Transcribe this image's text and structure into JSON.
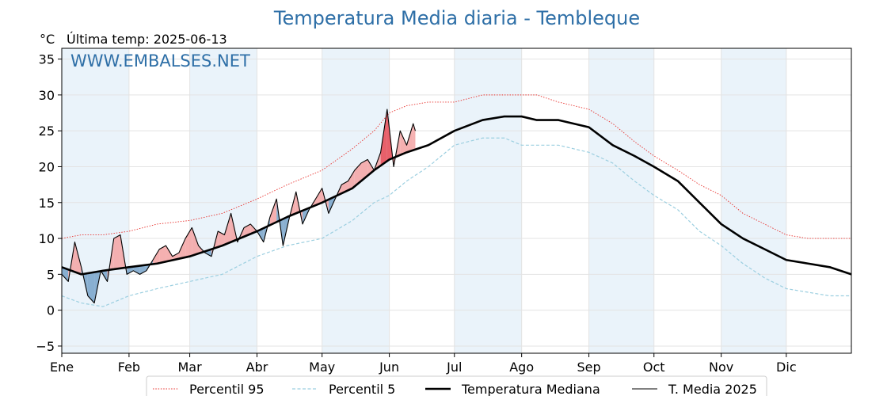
{
  "chart_data": {
    "type": "line",
    "title": "Temperatura Media diaria - Tembleque",
    "unit_label": "°C",
    "last_temp_label": "Última temp: 2025-06-13",
    "watermark": "WWW.EMBALSES.NET",
    "x_axis": {
      "unit": "day_of_year",
      "range": [
        1,
        365
      ]
    },
    "ylim": [
      -6,
      36.5
    ],
    "y_ticks": [
      -5,
      0,
      5,
      10,
      15,
      20,
      25,
      30,
      35
    ],
    "y_tick_labels": [
      "−5",
      "0",
      "5",
      "10",
      "15",
      "20",
      "25",
      "30",
      "35"
    ],
    "months": [
      {
        "label": "Ene",
        "day": 1
      },
      {
        "label": "Feb",
        "day": 32
      },
      {
        "label": "Mar",
        "day": 60
      },
      {
        "label": "Abr",
        "day": 91
      },
      {
        "label": "May",
        "day": 121
      },
      {
        "label": "Jun",
        "day": 152
      },
      {
        "label": "Jul",
        "day": 182
      },
      {
        "label": "Ago",
        "day": 213
      },
      {
        "label": "Sep",
        "day": 244
      },
      {
        "label": "Oct",
        "day": 274
      },
      {
        "label": "Nov",
        "day": 305
      },
      {
        "label": "Dic",
        "day": 335
      }
    ],
    "shaded_months": [
      0,
      2,
      4,
      6,
      8,
      10
    ],
    "grid": true,
    "legend_position": "bottom",
    "colors": {
      "p95": "#e8322e",
      "p5": "#9ccfe0",
      "median": "#000000",
      "current": "#000000",
      "above": "#f4a7a7",
      "above_strong": "#e8505a",
      "below": "#7da7cc",
      "below_strong": "#2e5f8f",
      "title": "#2e6fa7",
      "band": "#eaf3fa"
    },
    "series": [
      {
        "name": "Percentil 95",
        "style": "dotted-red",
        "x": [
          1,
          10,
          20,
          32,
          45,
          60,
          75,
          91,
          105,
          121,
          135,
          145,
          152,
          160,
          170,
          182,
          195,
          205,
          213,
          220,
          230,
          244,
          255,
          265,
          274,
          285,
          295,
          305,
          315,
          325,
          335,
          345,
          355,
          365
        ],
        "values": [
          10,
          10.5,
          10.5,
          11,
          12,
          12.5,
          13.5,
          15.5,
          17.5,
          19.5,
          22.5,
          25,
          27.5,
          28.5,
          29,
          29,
          30,
          30,
          30,
          30,
          29,
          28,
          26,
          23.5,
          21.5,
          19.5,
          17.5,
          16,
          13.5,
          12,
          10.5,
          10,
          10,
          10
        ]
      },
      {
        "name": "Percentil 5",
        "style": "dashed-lightblue",
        "x": [
          1,
          10,
          20,
          32,
          45,
          60,
          75,
          91,
          105,
          121,
          135,
          145,
          152,
          160,
          170,
          182,
          195,
          205,
          213,
          220,
          230,
          244,
          255,
          265,
          274,
          285,
          295,
          305,
          315,
          325,
          335,
          345,
          355,
          365
        ],
        "values": [
          2,
          1,
          0.5,
          2,
          3,
          4,
          5,
          7.5,
          9,
          10,
          12.5,
          15,
          16,
          18,
          20,
          23,
          24,
          24,
          23,
          23,
          23,
          22,
          20.5,
          18,
          16,
          14,
          11,
          9,
          6.5,
          4.5,
          3,
          2.5,
          2,
          2
        ]
      },
      {
        "name": "Temperatura Mediana",
        "style": "bold-black",
        "x": [
          1,
          10,
          20,
          32,
          45,
          60,
          75,
          91,
          105,
          121,
          135,
          145,
          152,
          160,
          170,
          182,
          195,
          205,
          213,
          220,
          230,
          244,
          255,
          265,
          274,
          285,
          295,
          305,
          315,
          325,
          335,
          345,
          355,
          365
        ],
        "values": [
          6,
          5,
          5.5,
          6,
          6.5,
          7.5,
          9,
          11,
          13,
          15,
          17,
          19.5,
          21,
          22,
          23,
          25,
          26.5,
          27,
          27,
          26.5,
          26.5,
          25.5,
          23,
          21.5,
          20,
          18,
          15,
          12,
          10,
          8.5,
          7,
          6.5,
          6,
          5
        ]
      },
      {
        "name": "T. Media 2025",
        "style": "thin-black",
        "x": [
          1,
          4,
          7,
          10,
          13,
          16,
          19,
          22,
          25,
          28,
          31,
          34,
          37,
          40,
          43,
          46,
          49,
          52,
          55,
          58,
          61,
          64,
          67,
          70,
          73,
          76,
          79,
          82,
          85,
          88,
          91,
          94,
          97,
          100,
          103,
          106,
          109,
          112,
          115,
          118,
          121,
          124,
          127,
          130,
          133,
          136,
          139,
          142,
          145,
          148,
          151,
          154,
          157,
          160,
          163,
          164
        ],
        "values": [
          5,
          4,
          9.5,
          6,
          2,
          1,
          5.5,
          4,
          10,
          10.5,
          5,
          5.5,
          5,
          5.5,
          7,
          8.5,
          9,
          7.5,
          8,
          10,
          11.5,
          9,
          8,
          7.5,
          11,
          10.5,
          13.5,
          9.5,
          11.5,
          12,
          11,
          9.5,
          13,
          15.5,
          9,
          13,
          16.5,
          12,
          14,
          15.5,
          17,
          13.5,
          15.5,
          17.5,
          18,
          19.5,
          20.5,
          21,
          19.5,
          22,
          28,
          20,
          25,
          23,
          26,
          25
        ]
      }
    ]
  }
}
